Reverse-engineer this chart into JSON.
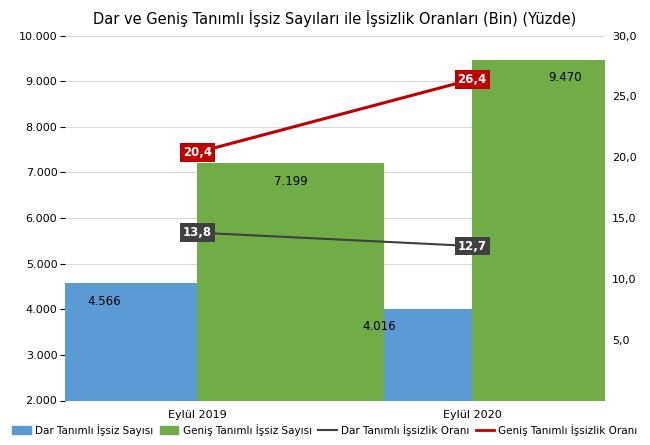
{
  "title": "Dar ve Geniş Tanımlı İşsiz Sayıları ile İşsizlik Oranları (Bin) (Yüzde)",
  "categories": [
    "Eylül 2019",
    "Eylül 2020"
  ],
  "dar_tanimli_issiz": [
    4566,
    4016
  ],
  "genis_tanimli_issiz": [
    7199,
    9470
  ],
  "dar_tanimli_oran": [
    13.8,
    12.7
  ],
  "genis_tanimli_oran": [
    20.4,
    26.4
  ],
  "bar_color_dar": "#5B9BD5",
  "bar_color_genis": "#70AD47",
  "line_color_dar": "#404040",
  "line_color_genis": "#C00000",
  "ylim_left": [
    2000,
    10000
  ],
  "ylim_right": [
    0,
    30
  ],
  "yticks_left": [
    2000,
    3000,
    4000,
    5000,
    6000,
    7000,
    8000,
    9000,
    10000
  ],
  "yticks_right": [
    0,
    5,
    10,
    15,
    20,
    25,
    30
  ],
  "ytick_labels_right": [
    "",
    "5,0",
    "10,0",
    "15,0",
    "20,0",
    "25,0",
    "30,0"
  ],
  "ytick_labels_left": [
    "2.000",
    "3.000",
    "4.000",
    "5.000",
    "6.000",
    "7.000",
    "8.000",
    "9.000",
    "10.000"
  ],
  "bar_width": 0.38,
  "bar_label_dar_2019": "4.566",
  "bar_label_dar_2020": "4.016",
  "bar_label_genis_2019": "7.199",
  "bar_label_genis_2020": "9.470",
  "rate_label_dar_2019": "13,8",
  "rate_label_dar_2020": "12,7",
  "rate_label_genis_2019": "20,4",
  "rate_label_genis_2020": "26,4",
  "legend_dar_issiz": "Dar Tanımlı İşsiz Sayısı",
  "legend_genis_issiz": "Geniş Tanımlı İşsiz Sayısı",
  "legend_dar_oran": "Dar Tanımlı İşsizlik Oranı",
  "legend_genis_oran": "Geniş Tanımlı İşsizlik Oranı",
  "background_color": "#FFFFFF",
  "grid_color": "#D0D0D0",
  "title_fontsize": 10.5,
  "bar_label_fontsize": 8.5,
  "rate_label_fontsize": 8.5,
  "tick_fontsize": 8,
  "legend_fontsize": 7.5,
  "x_positions": [
    0.22,
    0.78
  ],
  "xlim": [
    -0.05,
    1.05
  ]
}
